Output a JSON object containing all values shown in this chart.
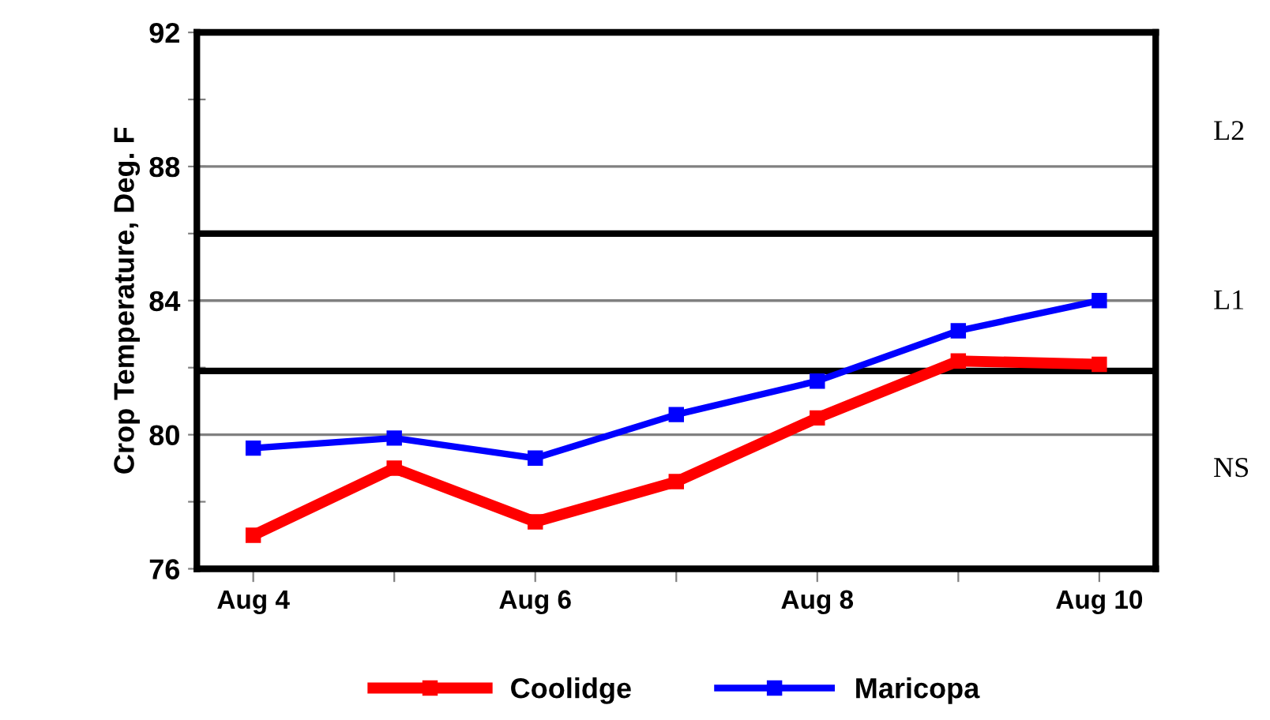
{
  "chart_data": {
    "type": "line",
    "ylabel": "Crop Temperature, Deg. F",
    "categories": [
      "Aug 4",
      null,
      "Aug 6",
      null,
      "Aug 8",
      null,
      "Aug 10"
    ],
    "series": [
      {
        "name": "Coolidge",
        "color": "#ff0000",
        "values": [
          77.0,
          79.0,
          77.4,
          78.6,
          80.5,
          82.2,
          82.1
        ]
      },
      {
        "name": "Maricopa",
        "color": "#0000ff",
        "values": [
          79.6,
          79.9,
          79.3,
          80.6,
          81.6,
          83.1,
          84.0
        ]
      }
    ],
    "ylim": [
      76,
      92
    ],
    "yticks": [
      76,
      {
        "value": 78,
        "label": null
      },
      80,
      {
        "value": 82,
        "label": null
      },
      84,
      {
        "value": 86,
        "label": null
      },
      88,
      {
        "value": 90,
        "label": null
      },
      92
    ],
    "ref_lines": [
      {
        "axis": "y",
        "value": 81.9,
        "color": "#000000"
      },
      {
        "axis": "y",
        "value": 86,
        "color": "#000000"
      }
    ],
    "annotations": [
      "L2",
      "L1",
      "NS"
    ],
    "grid": "y",
    "legend": "bottom",
    "marker": "square",
    "line_style": "solid"
  }
}
